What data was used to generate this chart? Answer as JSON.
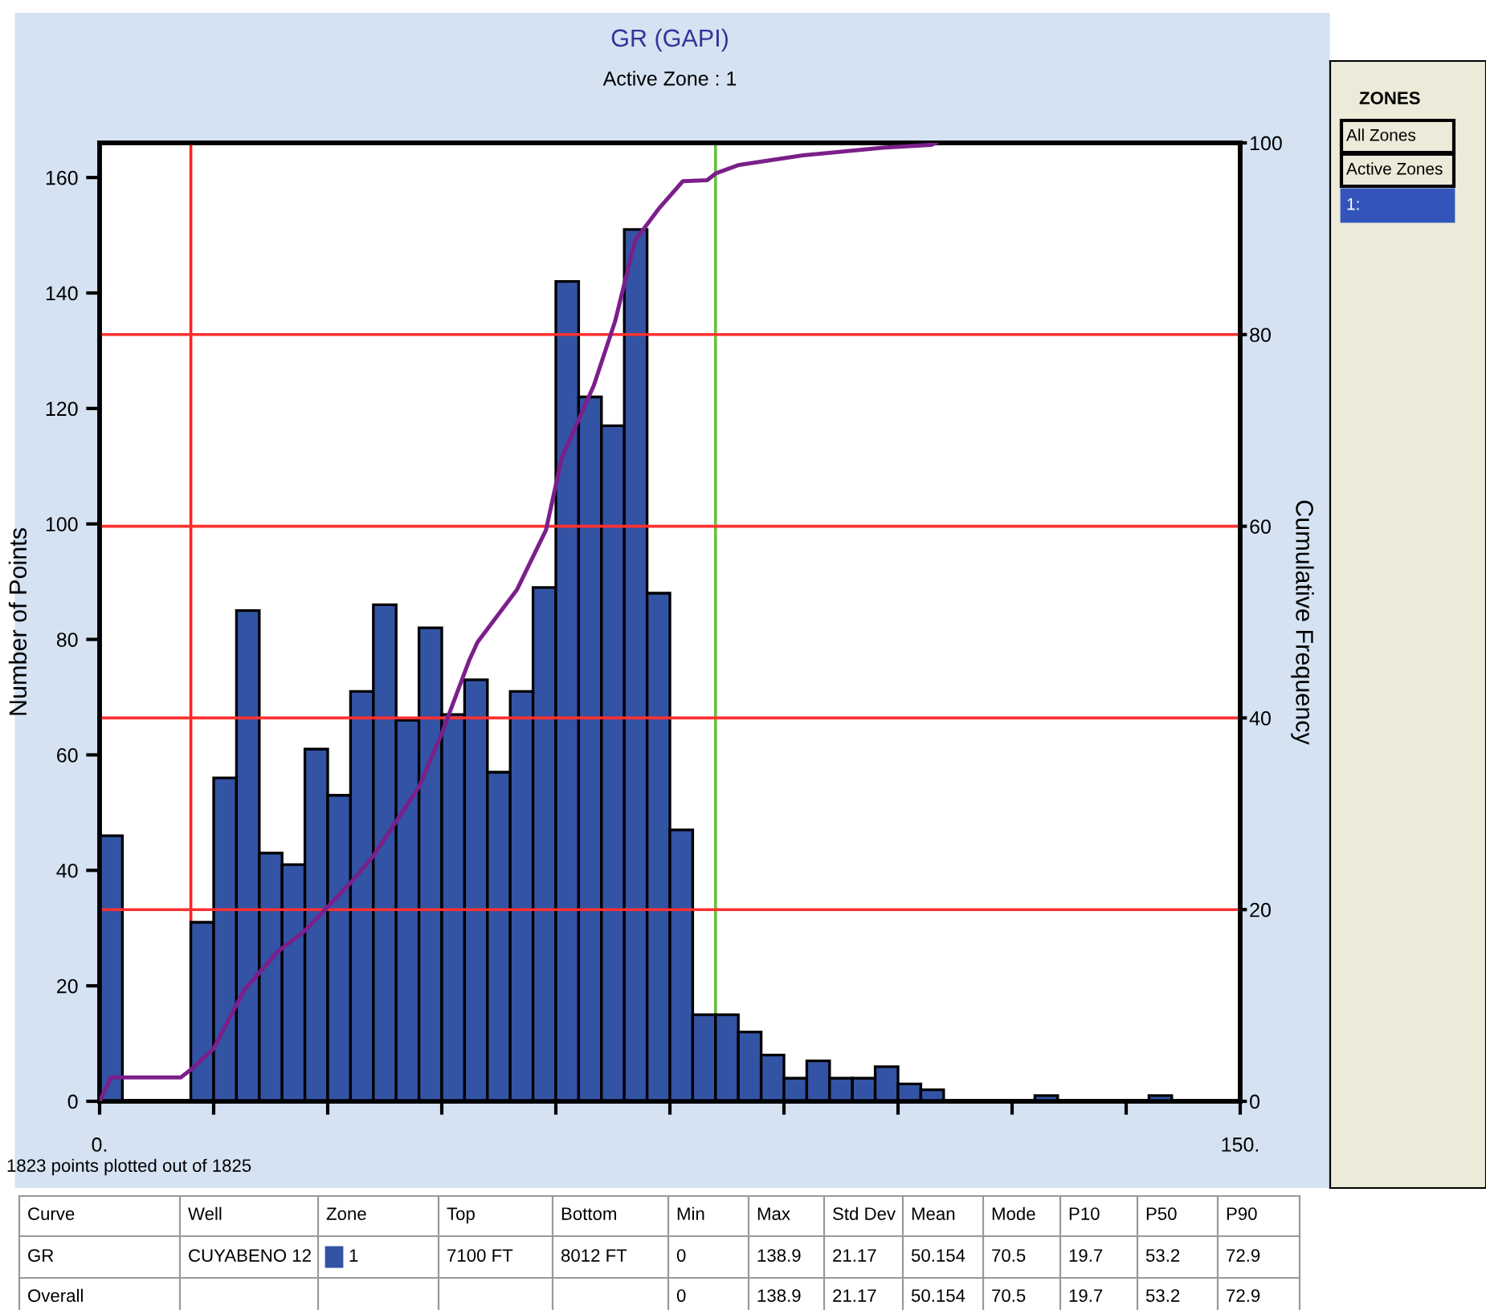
{
  "chart_data": {
    "type": "histogram",
    "title": "GR (GAPI)",
    "subtitle": "Active Zone : 1",
    "ylabel": "Number of Points",
    "y2label": "Cumulative Frequency",
    "color": "#3353a4",
    "bins": [
      0,
      3,
      6,
      9,
      12,
      15,
      18,
      21,
      24,
      27,
      30,
      33,
      36,
      39,
      42,
      45,
      48,
      51,
      54,
      57,
      60,
      63,
      66,
      69,
      72,
      75,
      78,
      81,
      84,
      87,
      90,
      93,
      96,
      99,
      102,
      105,
      108,
      111,
      114,
      117,
      120,
      123,
      126,
      129,
      132,
      135,
      138,
      141,
      144,
      147,
      150
    ],
    "values": [
      46,
      0,
      0,
      0,
      31,
      56,
      85,
      43,
      41,
      61,
      53,
      71,
      86,
      66,
      82,
      67,
      73,
      57,
      71,
      89,
      142,
      122,
      117,
      151,
      88,
      47,
      15,
      15,
      12,
      8,
      4,
      7,
      4,
      4,
      6,
      3,
      2,
      0,
      0,
      0,
      0,
      1,
      0,
      0,
      0,
      0,
      1,
      0,
      0,
      0
    ],
    "series": [
      {
        "type": "line",
        "axis": "y2",
        "color": "#7b1f8a",
        "x": [
          0,
          1.5,
          10.7,
          12,
          15,
          19,
          23.4,
          27,
          33,
          36,
          42,
          45,
          48.6,
          49.7,
          54.9,
          58.7,
          60.8,
          65,
          67.8,
          70.4,
          73.5,
          76.7,
          79.9,
          81,
          84.1,
          92.5,
          103,
          109.4,
          110
        ],
        "values": [
          0,
          2.5,
          2.5,
          3.3,
          5.5,
          11.6,
          15.6,
          17.8,
          22.8,
          25.6,
          32.8,
          38.4,
          46,
          47.9,
          53.4,
          59.6,
          67.2,
          74.7,
          81.4,
          89.8,
          93.1,
          96,
          96.1,
          96.8,
          97.7,
          98.7,
          99.5,
          99.8,
          100
        ]
      }
    ],
    "xlim": [
      0,
      150
    ],
    "xticks": [
      {
        "value": 0,
        "label": "0."
      },
      {
        "value": 15,
        "label": null
      },
      {
        "value": 30,
        "label": null
      },
      {
        "value": 45,
        "label": null
      },
      {
        "value": 60,
        "label": null
      },
      {
        "value": 75,
        "label": null
      },
      {
        "value": 90,
        "label": null
      },
      {
        "value": 105,
        "label": null
      },
      {
        "value": 120,
        "label": null
      },
      {
        "value": 135,
        "label": null
      },
      {
        "value": 150,
        "label": "150."
      }
    ],
    "ylim": [
      0,
      166
    ],
    "yticks": [
      0,
      20,
      40,
      60,
      80,
      100,
      120,
      140,
      160
    ],
    "y2lim": [
      0,
      100
    ],
    "y2ticks": [
      0,
      20,
      40,
      60,
      80,
      100
    ],
    "ref_lines": [
      {
        "axis": "y2",
        "value": 20,
        "color": "#ff3030"
      },
      {
        "axis": "y2",
        "value": 40,
        "color": "#ff3030"
      },
      {
        "axis": "y2",
        "value": 60,
        "color": "#ff3030"
      },
      {
        "axis": "y2",
        "value": 80,
        "color": "#ff3030"
      },
      {
        "axis": "x",
        "value": 12,
        "color": "#ff2020"
      },
      {
        "axis": "x",
        "value": 81,
        "color": "#66c040"
      }
    ],
    "grid": false,
    "legend": false,
    "annotations": [
      "1823 points plotted out of 1825",
      "ZONES",
      "All Zones",
      "Active Zones",
      "1:",
      "Curve",
      "Well",
      "Zone",
      "Top",
      "Bottom",
      "Min",
      "Max",
      "Std Dev",
      "Mean",
      "Mode",
      "P10",
      "P50",
      "P90",
      "GR",
      "CUYABENO 12",
      "1",
      "7100 FT",
      "8012 FT",
      "0",
      "138.9",
      "21.17",
      "50.154",
      "70.5",
      "19.7",
      "53.2",
      "72.9",
      "Overall",
      "0",
      "138.9",
      "21.17",
      "50.154",
      "70.5",
      "19.7",
      "53.2",
      "72.9"
    ]
  }
}
